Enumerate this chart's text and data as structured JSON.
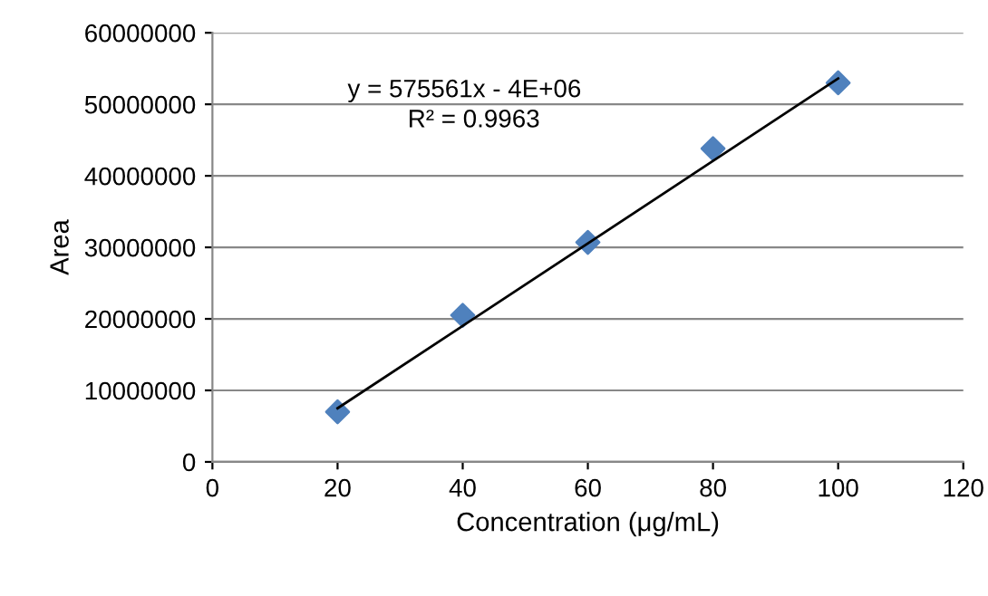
{
  "chart_data": {
    "type": "scatter",
    "xlabel": "Concentration (μg/mL)",
    "ylabel": "Area",
    "xlim": [
      0,
      120
    ],
    "xticks": [
      0,
      20,
      40,
      60,
      80,
      100,
      120
    ],
    "ylim": [
      0,
      60000000
    ],
    "yticks": [
      0,
      10000000,
      20000000,
      30000000,
      40000000,
      50000000,
      60000000
    ],
    "grid": "y",
    "series": [
      {
        "marker": "diamond",
        "color": "#4f81bd",
        "x": [
          20,
          40,
          60,
          80,
          100
        ],
        "values": [
          7000000,
          20500000,
          30700000,
          43800000,
          53000000
        ]
      },
      {
        "type": "line",
        "marker": "none",
        "color": "#000000",
        "x": [
          20,
          100
        ],
        "values": [
          7500000,
          53600000
        ]
      }
    ],
    "annotations": [
      "y = 575561x - 4E+06",
      "R² = 0.9963"
    ]
  }
}
